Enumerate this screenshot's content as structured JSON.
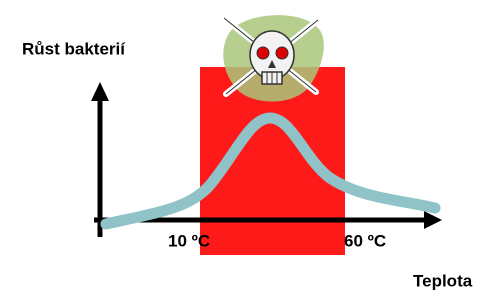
{
  "y_axis_label": "Růst bakterií",
  "x_axis_label": "Teplota",
  "zone_labels": [
    "10 ºC",
    "60 ºC"
  ]
}
